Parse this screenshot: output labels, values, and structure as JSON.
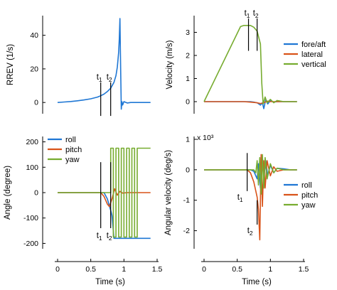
{
  "chart_data": [
    {
      "id": "rrev",
      "type": "line",
      "ylabel": "RREV (1/s)",
      "xlim": [
        0,
        1.5
      ],
      "ylim": [
        -5,
        50
      ],
      "xticks": [],
      "yticks": [
        0,
        20,
        40
      ],
      "grid": false,
      "legend": null,
      "series": [
        {
          "color": "#1f77d4",
          "x": [
            0,
            0.1,
            0.2,
            0.3,
            0.4,
            0.5,
            0.6,
            0.65,
            0.7,
            0.75,
            0.8,
            0.85,
            0.88,
            0.9,
            0.92,
            0.93,
            0.94,
            0.95,
            0.96,
            0.97,
            0.98,
            1.0,
            1.05,
            1.1,
            1.2,
            1.3,
            1.4
          ],
          "y": [
            0,
            0.3,
            0.6,
            1.0,
            1.5,
            2.2,
            3.2,
            4.0,
            5.0,
            6.5,
            8.5,
            12,
            16,
            21,
            30,
            38,
            50,
            20,
            -4,
            0.5,
            -1.5,
            0.5,
            -0.3,
            0,
            0,
            0,
            0
          ]
        }
      ],
      "markers": [
        {
          "label": "t",
          "sub": "1",
          "x": 0.65,
          "y_from": -8,
          "y_to": 12,
          "label_pos": "top"
        },
        {
          "label": "t",
          "sub": "2",
          "x": 0.8,
          "y_from": -8,
          "y_to": 12,
          "label_pos": "top"
        }
      ]
    },
    {
      "id": "velocity",
      "type": "line",
      "ylabel": "Velocity (m/s)",
      "xlim": [
        0,
        1.5
      ],
      "ylim": [
        -0.4,
        3.6
      ],
      "xticks": [],
      "yticks": [
        0,
        1,
        2,
        3
      ],
      "grid": false,
      "legend": {
        "placement": "right",
        "entries": [
          "fore/aft",
          "lateral",
          "vertical"
        ]
      },
      "series": [
        {
          "name": "fore/aft",
          "color": "#1f77d4",
          "x": [
            0,
            0.6,
            0.7,
            0.75,
            0.8,
            0.85,
            0.88,
            0.9,
            0.93,
            0.96,
            1.0,
            1.05,
            1.1,
            1.2,
            1.3,
            1.4
          ],
          "y": [
            0,
            0,
            0,
            -0.02,
            -0.05,
            -0.15,
            -0.05,
            -0.3,
            0.1,
            -0.1,
            0.05,
            -0.02,
            0,
            0,
            0,
            0
          ]
        },
        {
          "name": "lateral",
          "color": "#d95319",
          "x": [
            0,
            0.6,
            0.7,
            0.8,
            0.85,
            0.9,
            0.95,
            1.0,
            1.4
          ],
          "y": [
            0,
            0,
            -0.02,
            -0.05,
            -0.08,
            -0.05,
            0.02,
            0,
            0
          ]
        },
        {
          "name": "vertical",
          "color": "#77ac30",
          "x": [
            0,
            0.55,
            0.6,
            0.65,
            0.7,
            0.75,
            0.8,
            0.85,
            0.87,
            0.89,
            0.92,
            0.95,
            1.0,
            1.05,
            1.1,
            1.2,
            1.3,
            1.4
          ],
          "y": [
            0,
            3.25,
            3.3,
            3.3,
            3.3,
            3.22,
            3.05,
            2.5,
            0.8,
            -0.1,
            0.2,
            -0.05,
            0.1,
            -0.05,
            0.05,
            0,
            0,
            0
          ]
        }
      ],
      "markers": [
        {
          "label": "t",
          "sub": "1",
          "x": 0.67,
          "y_from": 2.2,
          "y_to": 3.6,
          "label_pos": "top"
        },
        {
          "label": "t",
          "sub": "2",
          "x": 0.8,
          "y_from": 2.2,
          "y_to": 3.6,
          "label_pos": "top"
        }
      ]
    },
    {
      "id": "angle",
      "type": "line",
      "xlabel": "Time (s)",
      "ylabel": "Angle (degree)",
      "xlim": [
        0,
        1.5
      ],
      "ylim": [
        -210,
        210
      ],
      "xticks": [
        0,
        0.5,
        1,
        1.5
      ],
      "yticks": [
        -200,
        -100,
        0,
        100,
        200
      ],
      "grid": false,
      "legend": {
        "placement": "top-left",
        "entries": [
          "roll",
          "pitch",
          "yaw"
        ]
      },
      "series": [
        {
          "name": "roll",
          "color": "#1f77d4",
          "x": [
            0,
            0.7,
            0.75,
            0.8,
            0.82,
            0.85,
            0.9,
            0.95,
            1.0,
            1.1,
            1.2,
            1.3,
            1.4
          ],
          "y": [
            0,
            0,
            -25,
            -70,
            -90,
            -180,
            -180,
            -180,
            -180,
            -180,
            -180,
            -180,
            -180
          ]
        },
        {
          "name": "pitch",
          "color": "#d95319",
          "x": [
            0,
            0.65,
            0.7,
            0.75,
            0.78,
            0.82,
            0.86,
            0.9,
            0.94,
            0.98,
            1.05,
            1.1,
            1.2,
            1.3,
            1.4
          ],
          "y": [
            0,
            0,
            -15,
            -45,
            -55,
            -25,
            15,
            -10,
            5,
            -2,
            0,
            0,
            0,
            0,
            0
          ]
        },
        {
          "name": "yaw",
          "color": "#77ac30",
          "x": [
            0,
            0.75,
            0.8,
            0.8,
            0.84,
            0.84,
            0.88,
            0.88,
            0.92,
            0.92,
            0.96,
            0.96,
            1.0,
            1.0,
            1.04,
            1.04,
            1.08,
            1.08,
            1.12,
            1.12,
            1.16,
            1.16,
            1.2,
            1.2,
            1.4
          ],
          "y": [
            0,
            0,
            0,
            175,
            175,
            -175,
            -175,
            175,
            175,
            -175,
            -175,
            175,
            175,
            -175,
            -175,
            175,
            175,
            -175,
            -175,
            175,
            175,
            -175,
            -175,
            175,
            175
          ]
        }
      ],
      "markers": [
        {
          "label": "t",
          "sub": "1",
          "x": 0.65,
          "y_from": -140,
          "y_to": 120,
          "label_pos": "bottom"
        },
        {
          "label": "t",
          "sub": "2",
          "x": 0.8,
          "y_from": -140,
          "y_to": 120,
          "label_pos": "bottom"
        }
      ]
    },
    {
      "id": "angular-velocity",
      "type": "line",
      "xlabel": "Time (s)",
      "ylabel": "Angular velocity (deg/s)",
      "scale_note": "x 10³",
      "xlim": [
        0,
        1.5
      ],
      "ylim": [
        -2.5,
        1.0
      ],
      "xticks": [
        0,
        0.5,
        1,
        1.5
      ],
      "yticks": [
        -2,
        -1,
        0,
        1
      ],
      "grid": false,
      "legend": {
        "placement": "bottom-right",
        "entries": [
          "roll",
          "pitch",
          "yaw"
        ]
      },
      "series": [
        {
          "name": "roll",
          "color": "#1f77d4",
          "x": [
            0,
            0.7,
            0.75,
            0.8,
            0.82,
            0.85,
            0.88,
            0.9,
            0.93,
            0.96,
            1.0,
            1.05,
            1.1,
            1.2,
            1.3,
            1.4
          ],
          "y": [
            0,
            0,
            -0.05,
            -0.3,
            0.2,
            -0.6,
            0.4,
            -0.3,
            0.3,
            -0.2,
            0.15,
            -0.1,
            0.05,
            0.03,
            0,
            0
          ]
        },
        {
          "name": "pitch",
          "color": "#d95319",
          "x": [
            0,
            0.65,
            0.7,
            0.75,
            0.8,
            0.82,
            0.84,
            0.86,
            0.88,
            0.9,
            0.92,
            0.95,
            1.0,
            1.05,
            1.1,
            1.2,
            1.4
          ],
          "y": [
            0,
            0,
            -0.1,
            -0.4,
            -0.9,
            -1.3,
            -2.3,
            0.5,
            -1.2,
            0.3,
            -0.6,
            0.3,
            -0.2,
            0.1,
            -0.05,
            0,
            0
          ]
        },
        {
          "name": "yaw",
          "color": "#77ac30",
          "x": [
            0,
            0.75,
            0.78,
            0.8,
            0.82,
            0.84,
            0.86,
            0.88,
            0.9,
            0.92,
            0.95,
            1.0,
            1.05,
            1.1,
            1.2,
            1.3,
            1.4
          ],
          "y": [
            0,
            0,
            -0.1,
            0.3,
            -0.5,
            0.4,
            -0.8,
            0.5,
            -0.6,
            0.4,
            -0.3,
            0.2,
            -0.1,
            0.05,
            0,
            0,
            0
          ]
        }
      ],
      "markers": [
        {
          "label": "t",
          "sub": "1",
          "x": 0.65,
          "y_from": -0.7,
          "y_to": 0.55,
          "label_pos": "left"
        },
        {
          "label": "t",
          "sub": "2",
          "x": 0.8,
          "y_from": -1.8,
          "y_to": -1.0,
          "label_pos": "left"
        }
      ]
    }
  ]
}
